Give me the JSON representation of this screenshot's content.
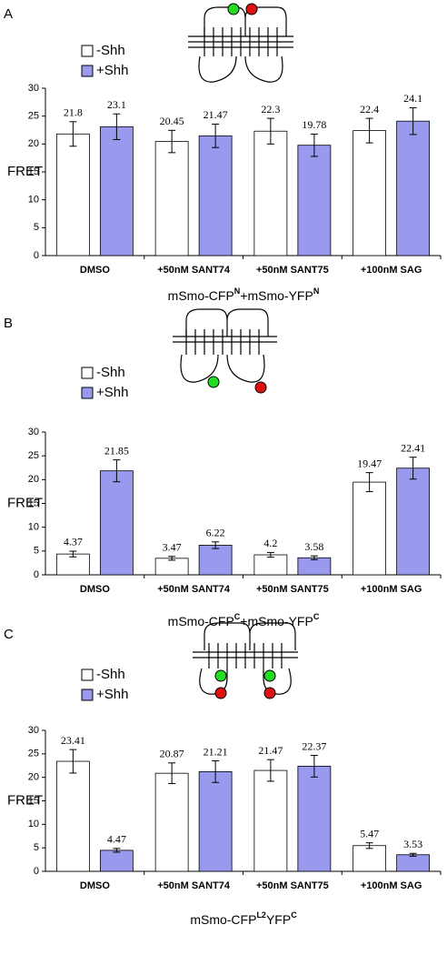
{
  "chart_data": [
    {
      "type": "bar",
      "panel": "A",
      "ylabel": "FRET",
      "xlabel": [
        "mSmo-CFP",
        "N",
        "+mSmo-YFP",
        "N"
      ],
      "categories": [
        "DMSO",
        "+50nM SANT74",
        "+50nM SANT75",
        "+100nM SAG"
      ],
      "series": [
        {
          "name": "-Shh",
          "color": "#ffffff",
          "values": [
            21.8,
            20.45,
            22.3,
            22.4
          ],
          "errors": [
            2.2,
            2.0,
            2.3,
            2.2
          ]
        },
        {
          "name": "+Shh",
          "color": "#9999ee",
          "values": [
            23.1,
            21.47,
            19.78,
            24.1
          ],
          "errors": [
            2.3,
            2.1,
            2.0,
            2.4
          ]
        }
      ],
      "ylim": [
        0,
        30
      ],
      "yticks": [
        0,
        5,
        10,
        15,
        20,
        25,
        30
      ]
    },
    {
      "type": "bar",
      "panel": "B",
      "ylabel": "FRET",
      "xlabel": [
        "mSmo-CFP",
        "C",
        "+mSmo-YFP",
        "C"
      ],
      "categories": [
        "DMSO",
        "+50nM SANT74",
        "+50nM SANT75",
        "+100nM SAG"
      ],
      "series": [
        {
          "name": "-Shh",
          "color": "#ffffff",
          "values": [
            4.37,
            3.47,
            4.2,
            19.47
          ],
          "errors": [
            0.6,
            0.4,
            0.5,
            2.0
          ]
        },
        {
          "name": "+Shh",
          "color": "#9999ee",
          "values": [
            21.85,
            6.22,
            3.58,
            22.41
          ],
          "errors": [
            2.3,
            0.7,
            0.4,
            2.3
          ]
        }
      ],
      "ylim": [
        0,
        30
      ],
      "yticks": [
        0,
        5,
        10,
        15,
        20,
        25,
        30
      ]
    },
    {
      "type": "bar",
      "panel": "C",
      "ylabel": "FRET",
      "xlabel": [
        "mSmo-CFP",
        "L2",
        "YFP",
        "C"
      ],
      "categories": [
        "DMSO",
        "+50nM SANT74",
        "+50nM SANT75",
        "+100nM SAG"
      ],
      "series": [
        {
          "name": "-Shh",
          "color": "#ffffff",
          "values": [
            23.41,
            20.87,
            21.47,
            5.47
          ],
          "errors": [
            2.5,
            2.2,
            2.3,
            0.6
          ]
        },
        {
          "name": "+Shh",
          "color": "#9999ee",
          "values": [
            4.47,
            21.21,
            22.37,
            3.53
          ],
          "errors": [
            0.4,
            2.3,
            2.3,
            0.3
          ]
        }
      ],
      "ylim": [
        0,
        30
      ],
      "yticks": [
        0,
        5,
        10,
        15,
        20,
        25,
        30
      ]
    }
  ]
}
